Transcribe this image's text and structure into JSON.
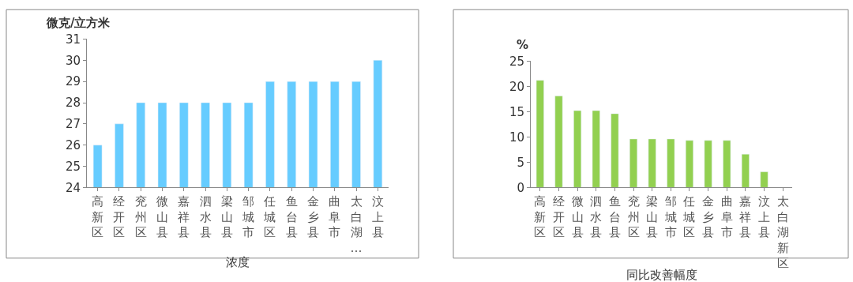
{
  "chart_data": [
    {
      "type": "bar",
      "ylabel": "微克/立方米",
      "xlabel": "浓度",
      "categories": [
        "高新区",
        "经开区",
        "兖州区",
        "微山县",
        "嘉祥县",
        "泗水县",
        "梁山县",
        "邹城市",
        "任城区",
        "鱼台县",
        "金乡县",
        "曲阜市",
        "太白湖…",
        "汶上县"
      ],
      "values": [
        26,
        27,
        28,
        28,
        28,
        28,
        28,
        28,
        29,
        29,
        29,
        29,
        29,
        30
      ],
      "color": "#66ccff",
      "ylim": [
        24,
        31
      ],
      "yticks": [
        24,
        25,
        26,
        27,
        28,
        29,
        30,
        31
      ]
    },
    {
      "type": "bar",
      "ylabel": "%",
      "xlabel": "同比改善幅度",
      "categories": [
        "高新区",
        "经开区",
        "微山县",
        "泗水县",
        "鱼台县",
        "兖州区",
        "梁山县",
        "邹城市",
        "任城区",
        "金乡县",
        "曲阜市",
        "嘉祥县",
        "汶上县",
        "太白湖新区"
      ],
      "values": [
        21.2,
        18.1,
        15.2,
        15.2,
        14.6,
        9.6,
        9.6,
        9.6,
        9.3,
        9.3,
        9.3,
        6.6,
        3.1,
        null
      ],
      "color": "#92d050",
      "ylim": [
        0,
        25
      ],
      "yticks": [
        0,
        5,
        10,
        15,
        20,
        25
      ]
    }
  ]
}
